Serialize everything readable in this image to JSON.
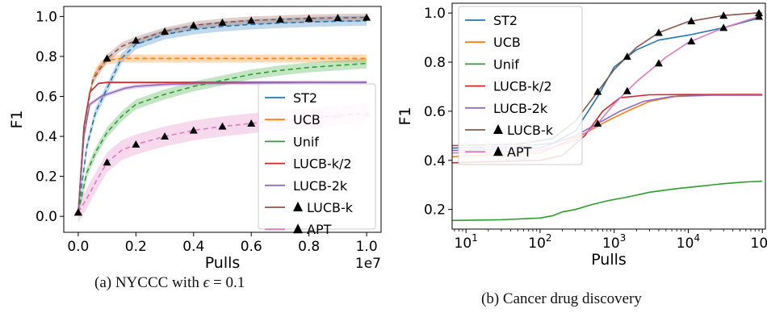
{
  "captions": {
    "a_prefix": "(a) NYCCC with ",
    "a_symbol": "ϵ",
    "a_suffix": " = 0.1",
    "b": "(b) Cancer drug discovery"
  },
  "colors": {
    "ST2": "#1f77b4",
    "UCB": "#ff7f0e",
    "Unif": "#2ca02c",
    "LUCB-k/2": "#d62728",
    "LUCB-2k": "#9467bd",
    "LUCB-k": "#8c564b",
    "APT": "#e377c2"
  },
  "legend_entries": [
    {
      "name": "ST2",
      "marker": ""
    },
    {
      "name": "UCB",
      "marker": ""
    },
    {
      "name": "Unif",
      "marker": ""
    },
    {
      "name": "LUCB-k/2",
      "marker": ""
    },
    {
      "name": "LUCB-2k",
      "marker": ""
    },
    {
      "name": "LUCB-k",
      "marker": "▲"
    },
    {
      "name": "APT",
      "marker": "▲"
    }
  ],
  "chart_data": [
    {
      "type": "line",
      "ylabel": "F1",
      "xlabel": "Pulls",
      "x_offset_text": "1e7",
      "xlim": [
        -0.5,
        10.5
      ],
      "ylim": [
        -0.08,
        1.05
      ],
      "xticks": [
        0,
        2,
        4,
        6,
        8,
        10
      ],
      "xtick_labels": [
        "0.0",
        "0.2",
        "0.4",
        "0.6",
        "0.8",
        "1.0"
      ],
      "yticks": [
        0.0,
        0.2,
        0.4,
        0.6,
        0.8,
        1.0
      ],
      "ytick_labels": [
        "0.0",
        "0.2",
        "0.4",
        "0.6",
        "0.8",
        "1.0"
      ],
      "legend_position": "lower-right",
      "series": [
        {
          "name": "ST2",
          "x": [
            0,
            0.3,
            0.6,
            1.0,
            1.5,
            2,
            3,
            4,
            5,
            6,
            7,
            8,
            9,
            10
          ],
          "y": [
            0.02,
            0.35,
            0.52,
            0.64,
            0.79,
            0.86,
            0.91,
            0.935,
            0.95,
            0.96,
            0.967,
            0.972,
            0.976,
            0.978
          ],
          "band": 0.025
        },
        {
          "name": "UCB",
          "x": [
            0,
            0.2,
            0.4,
            0.6,
            0.8,
            1.0,
            1.5,
            2,
            3,
            4,
            5,
            6,
            7,
            8,
            9,
            10
          ],
          "y": [
            0.02,
            0.4,
            0.62,
            0.72,
            0.76,
            0.78,
            0.79,
            0.79,
            0.79,
            0.79,
            0.79,
            0.79,
            0.79,
            0.79,
            0.79,
            0.79
          ],
          "band": 0.02
        },
        {
          "name": "Unif",
          "x": [
            0,
            0.3,
            0.6,
            1.0,
            1.5,
            2,
            3,
            4,
            5,
            6,
            7,
            8,
            9,
            10
          ],
          "y": [
            0.02,
            0.22,
            0.32,
            0.42,
            0.5,
            0.56,
            0.61,
            0.65,
            0.68,
            0.71,
            0.73,
            0.745,
            0.755,
            0.765
          ],
          "band": 0.025
        },
        {
          "name": "LUCB-k/2",
          "x": [
            0,
            0.2,
            0.4,
            0.7,
            1.0,
            2,
            4,
            6,
            8,
            10
          ],
          "y": [
            0.02,
            0.45,
            0.62,
            0.665,
            0.67,
            0.67,
            0.67,
            0.67,
            0.67,
            0.67
          ],
          "band": 0.005
        },
        {
          "name": "LUCB-2k",
          "x": [
            0,
            0.2,
            0.4,
            0.8,
            1.2,
            1.6,
            2,
            3,
            4,
            6,
            8,
            10
          ],
          "y": [
            0.02,
            0.4,
            0.56,
            0.6,
            0.62,
            0.64,
            0.65,
            0.66,
            0.665,
            0.667,
            0.67,
            0.67
          ],
          "band": 0.01
        },
        {
          "name": "LUCB-k",
          "x": [
            0,
            0.2,
            0.5,
            1.0,
            1.5,
            2,
            3,
            4,
            5,
            6,
            7,
            8,
            9,
            10
          ],
          "y": [
            0.02,
            0.45,
            0.68,
            0.79,
            0.85,
            0.88,
            0.925,
            0.955,
            0.97,
            0.98,
            0.985,
            0.99,
            0.993,
            0.995
          ],
          "band": 0.02
        },
        {
          "name": "APT",
          "x": [
            0,
            0.3,
            0.6,
            1.0,
            1.5,
            2,
            3,
            4,
            5,
            6,
            7,
            8,
            9,
            10
          ],
          "y": [
            0.02,
            0.09,
            0.17,
            0.27,
            0.33,
            0.36,
            0.4,
            0.43,
            0.45,
            0.465,
            0.48,
            0.49,
            0.505,
            0.515
          ],
          "band": 0.05
        }
      ]
    },
    {
      "type": "line",
      "ylabel": "F1",
      "xlabel": "Pulls",
      "xscale": "log",
      "xlim": [
        6.5,
        110000
      ],
      "ylim": [
        0.12,
        1.04
      ],
      "xticks": [
        10,
        100,
        1000,
        10000,
        100000
      ],
      "xtick_label_mantissa": "10",
      "xtick_label_exponents": [
        "1",
        "2",
        "3",
        "4",
        "5"
      ],
      "yticks": [
        0.2,
        0.4,
        0.6,
        0.8,
        1.0
      ],
      "ytick_labels": [
        "0.2",
        "0.4",
        "0.6",
        "0.8",
        "1.0"
      ],
      "legend_position": "upper-left",
      "series": [
        {
          "name": "ST2",
          "x": [
            6.5,
            50,
            150,
            300,
            600,
            1000,
            2000,
            4000,
            10000,
            30000,
            90000
          ],
          "y": [
            0.45,
            0.455,
            0.47,
            0.52,
            0.66,
            0.78,
            0.85,
            0.89,
            0.91,
            0.94,
            0.98
          ]
        },
        {
          "name": "UCB",
          "x": [
            6.5,
            100,
            400,
            800,
            1500,
            3000,
            8000,
            20000,
            100000
          ],
          "y": [
            0.415,
            0.43,
            0.51,
            0.56,
            0.6,
            0.64,
            0.665,
            0.668,
            0.668
          ]
        },
        {
          "name": "Unif",
          "x": [
            6.5,
            30,
            60,
            100,
            150,
            200,
            300,
            500,
            800,
            1500,
            3000,
            7000,
            15000,
            30000,
            60000,
            100000
          ],
          "y": [
            0.155,
            0.158,
            0.162,
            0.165,
            0.175,
            0.19,
            0.2,
            0.22,
            0.235,
            0.25,
            0.27,
            0.285,
            0.295,
            0.305,
            0.312,
            0.315
          ]
        },
        {
          "name": "LUCB-k/2",
          "x": [
            6.5,
            100,
            200,
            400,
            700,
            1200,
            3000,
            10000,
            100000
          ],
          "y": [
            0.39,
            0.4,
            0.42,
            0.5,
            0.6,
            0.655,
            0.667,
            0.668,
            0.668
          ]
        },
        {
          "name": "LUCB-2k",
          "x": [
            6.5,
            100,
            300,
            600,
            1200,
            2500,
            6000,
            20000,
            100000
          ],
          "y": [
            0.44,
            0.45,
            0.5,
            0.55,
            0.6,
            0.64,
            0.66,
            0.665,
            0.665
          ]
        },
        {
          "name": "LUCB-k",
          "x": [
            6.5,
            50,
            150,
            300,
            600,
            1000,
            2000,
            4000,
            10000,
            30000,
            80000,
            100000
          ],
          "y": [
            0.46,
            0.465,
            0.49,
            0.56,
            0.68,
            0.77,
            0.86,
            0.92,
            0.965,
            0.99,
            1.0,
            1.0
          ]
        },
        {
          "name": "APT",
          "x": [
            6.5,
            100,
            300,
            600,
            1000,
            2000,
            5000,
            10000,
            30000,
            100000
          ],
          "y": [
            0.43,
            0.44,
            0.48,
            0.55,
            0.63,
            0.72,
            0.82,
            0.88,
            0.94,
            0.99
          ]
        }
      ]
    }
  ]
}
